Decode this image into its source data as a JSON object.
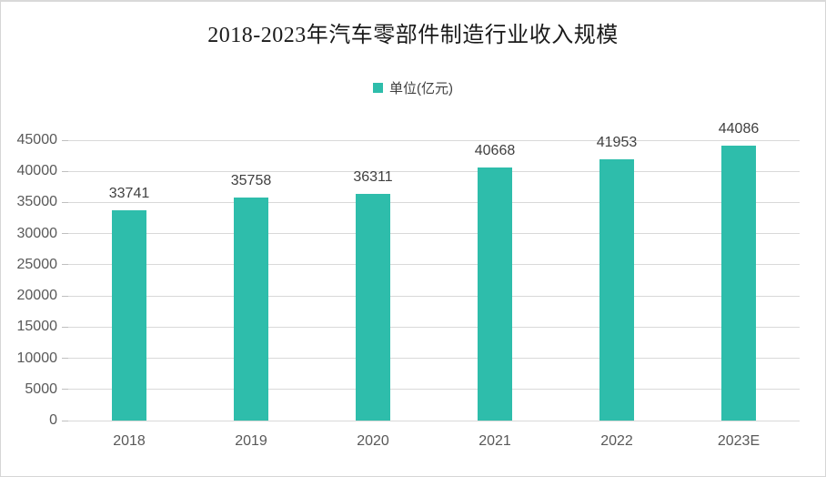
{
  "chart": {
    "legend_label": "单位(亿元)"
  },
  "chart_data": {
    "type": "bar",
    "title": "2018-2023年汽车零部件制造行业收入规模",
    "categories": [
      "2018",
      "2019",
      "2020",
      "2021",
      "2022",
      "2023E"
    ],
    "values": [
      33741,
      35758,
      36311,
      40668,
      41953,
      44086
    ],
    "legend": [
      "单位(亿元)"
    ],
    "xlabel": "",
    "ylabel": "",
    "ylim": [
      0,
      45000
    ],
    "yticks": [
      0,
      5000,
      10000,
      15000,
      20000,
      25000,
      30000,
      35000,
      40000,
      45000
    ],
    "grid": true,
    "legend_position": "top",
    "data_labels": true,
    "colors": {
      "bar": "#2ebdab",
      "gridline": "#d9d9d9",
      "tick_mark": "#bfbfbf",
      "axis_text": "#595959",
      "value_label_text": "#404040",
      "title_text": "#1a1a1a"
    }
  }
}
